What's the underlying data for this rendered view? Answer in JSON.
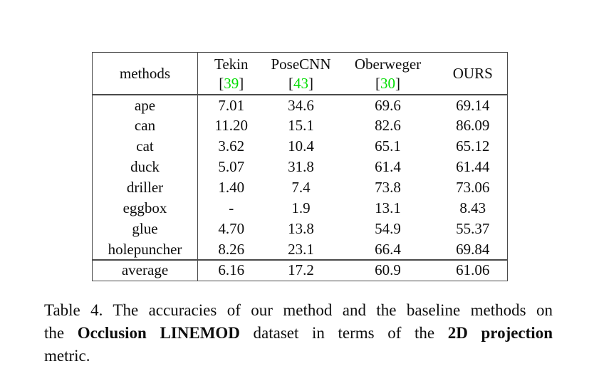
{
  "table": {
    "corner_label": "methods",
    "columns": [
      {
        "name": "Tekin",
        "cite_open": "[",
        "cite_num": "39",
        "cite_close": "]"
      },
      {
        "name": "PoseCNN",
        "cite_open": "[",
        "cite_num": "43",
        "cite_close": "]"
      },
      {
        "name": "Oberweger",
        "cite_open": "[",
        "cite_num": "30",
        "cite_close": "]"
      },
      {
        "name": "OURS",
        "cite_open": "",
        "cite_num": "",
        "cite_close": ""
      }
    ],
    "rows": [
      {
        "label": "ape",
        "values": [
          "7.01",
          "34.6",
          "69.6",
          "69.14"
        ],
        "bold": [
          false,
          false,
          true,
          false
        ]
      },
      {
        "label": "can",
        "values": [
          "11.20",
          "15.1",
          "82.6",
          "86.09"
        ],
        "bold": [
          false,
          false,
          false,
          true
        ]
      },
      {
        "label": "cat",
        "values": [
          "3.62",
          "10.4",
          "65.1",
          "65.12"
        ],
        "bold": [
          false,
          false,
          false,
          true
        ]
      },
      {
        "label": "duck",
        "values": [
          "5.07",
          "31.8",
          "61.4",
          "61.44"
        ],
        "bold": [
          false,
          false,
          false,
          true
        ]
      },
      {
        "label": "driller",
        "values": [
          "1.40",
          "7.4",
          "73.8",
          "73.06"
        ],
        "bold": [
          false,
          false,
          true,
          false
        ]
      },
      {
        "label": "eggbox",
        "values": [
          "-",
          "1.9",
          "13.1",
          "8.43"
        ],
        "bold": [
          false,
          false,
          true,
          false
        ]
      },
      {
        "label": "glue",
        "values": [
          "4.70",
          "13.8",
          "54.9",
          "55.37"
        ],
        "bold": [
          false,
          false,
          false,
          true
        ]
      },
      {
        "label": "holepuncher",
        "values": [
          "8.26",
          "23.1",
          "66.4",
          "69.84"
        ],
        "bold": [
          false,
          false,
          false,
          true
        ]
      }
    ],
    "average": {
      "label": "average",
      "values": [
        "6.16",
        "17.2",
        "60.9",
        "61.06"
      ],
      "bold": [
        false,
        false,
        false,
        true
      ]
    }
  },
  "caption": {
    "line1": "Table 4. The accuracies of our method and the baseline methods on",
    "line2": {
      "pre": "the ",
      "bold1": "Occlusion LINEMOD",
      "mid": " dataset in terms of the ",
      "bold2": "2D projection"
    },
    "line3": "metric."
  },
  "colors": {
    "citation_green": "#00dd00",
    "table_border": "#4a4a4a",
    "text": "#0e0e0e",
    "background": "#ffffff"
  }
}
